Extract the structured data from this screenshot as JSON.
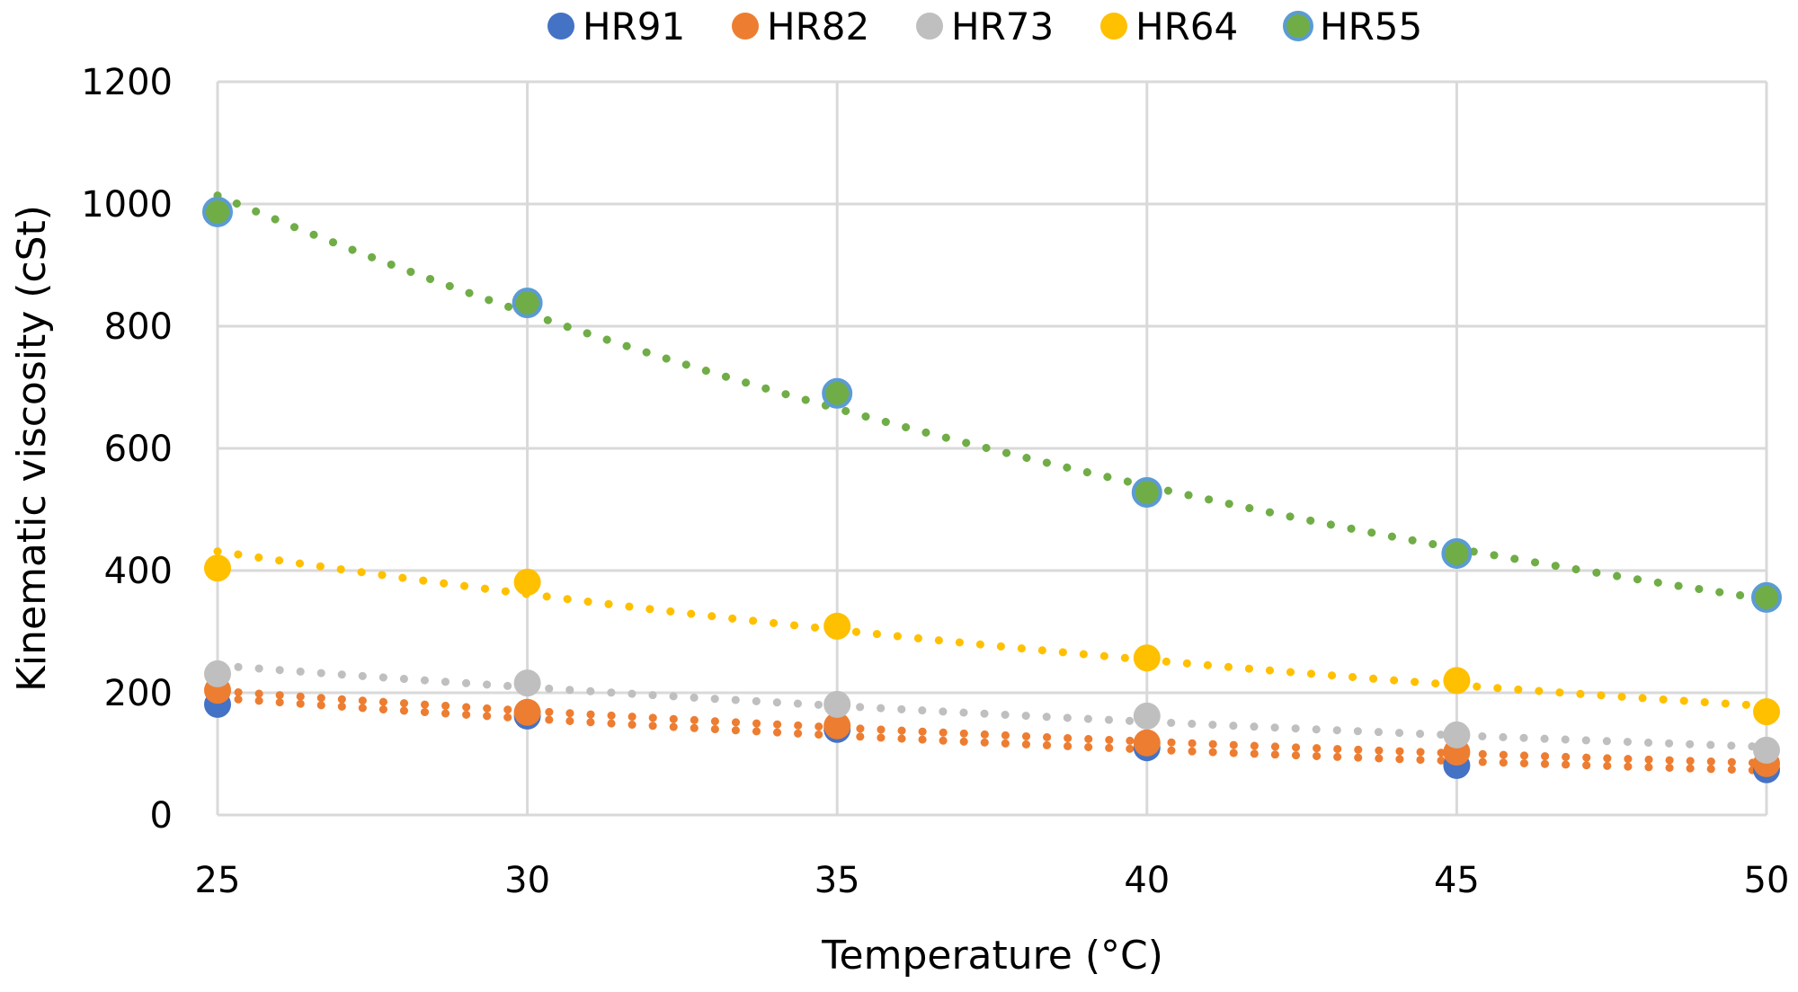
{
  "chart_data": {
    "type": "scatter",
    "title": "",
    "xlabel": "Temperature (°C)",
    "ylabel": "Kinematic viscosity (cSt)",
    "xlim": [
      25,
      50
    ],
    "ylim": [
      0,
      1200
    ],
    "x_ticks": [
      "25",
      "30",
      "35",
      "40",
      "45",
      "50"
    ],
    "y_ticks": [
      "0",
      "200",
      "400",
      "600",
      "800",
      "1000",
      "1200"
    ],
    "grid": true,
    "legend_position": "top",
    "trendline": "exponential, dotted",
    "x": [
      25,
      30,
      35,
      40,
      45,
      50
    ],
    "series": [
      {
        "name": "HR91",
        "color": "#4472C4",
        "edge": "#4472C4",
        "trend_color": "#ED7D31",
        "values": [
          181,
          162,
          140,
          110,
          81,
          74
        ]
      },
      {
        "name": "HR82",
        "color": "#ED7D31",
        "edge": "#ED7D31",
        "trend_color": "#ED7D31",
        "values": [
          204,
          168,
          146,
          118,
          103,
          84
        ]
      },
      {
        "name": "HR73",
        "color": "#BFBFBF",
        "edge": "#BFBFBF",
        "trend_color": "#BFBFBF",
        "values": [
          231,
          216,
          181,
          162,
          131,
          106
        ]
      },
      {
        "name": "HR64",
        "color": "#FFC000",
        "edge": "#FFC000",
        "trend_color": "#FFC000",
        "values": [
          404,
          381,
          309,
          257,
          220,
          169
        ]
      },
      {
        "name": "HR55",
        "color": "#70AD47",
        "edge": "#5B9BD5",
        "trend_color": "#70AD47",
        "values": [
          987,
          838,
          690,
          528,
          428,
          356
        ]
      }
    ]
  }
}
